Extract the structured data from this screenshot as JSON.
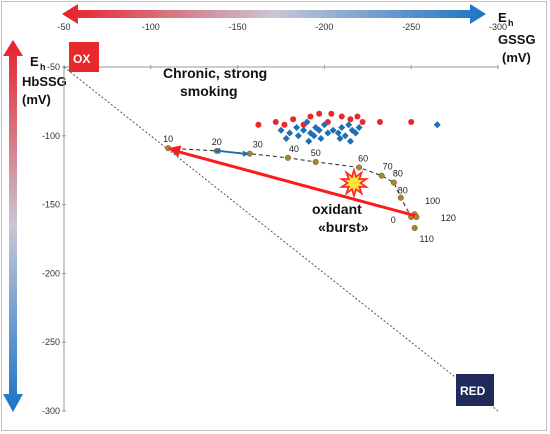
{
  "chart_data": {
    "type": "scatter",
    "x_axis": {
      "label_main": "E",
      "label_sub": "h",
      "label_line2": "GSSG",
      "label_line3": "(mV)",
      "range": [
        -50,
        -300
      ],
      "ticks": [
        -50,
        -100,
        -150,
        -200,
        -250,
        -300
      ]
    },
    "y_axis": {
      "label_main": "E",
      "label_sub": "h",
      "label_line2": "HbSSG",
      "label_line3": "(mV)",
      "range": [
        -50,
        -300
      ],
      "ticks": [
        -50,
        -100,
        -150,
        -200,
        -250,
        -300
      ]
    },
    "grid": false,
    "colors": {
      "ox_box": "#e8292b",
      "red_box": "#1f2a5a",
      "red_point": "#e8292b",
      "blue_point": "#1f6fb6",
      "path_point": "#a8842a",
      "diag": "#555555",
      "arrow_red": "#ff1a1a",
      "arrow_blue": "#1f6fb6",
      "burst": "#ff2a2a",
      "burst_core": "#ffe23a"
    },
    "labels": {
      "ox": "OX",
      "red": "RED",
      "smoking_line1": "Chronic, strong",
      "smoking_line2": "smoking",
      "burst_line1": "oxidant",
      "burst_line2": "«burst»"
    },
    "smoking_red": [
      [
        -172,
        -90
      ],
      [
        -182,
        -88
      ],
      [
        -192,
        -86
      ],
      [
        -197,
        -84
      ],
      [
        -204,
        -84
      ],
      [
        -210,
        -86
      ],
      [
        -215,
        -88
      ],
      [
        -219,
        -86
      ],
      [
        -232,
        -90
      ],
      [
        -250,
        -90
      ],
      [
        -177,
        -92
      ],
      [
        -188,
        -92
      ],
      [
        -202,
        -90
      ],
      [
        -222,
        -90
      ],
      [
        -162,
        -92
      ]
    ],
    "smoking_blue": [
      [
        -175,
        -96
      ],
      [
        -180,
        -98
      ],
      [
        -184,
        -94
      ],
      [
        -188,
        -96
      ],
      [
        -190,
        -90
      ],
      [
        -192,
        -98
      ],
      [
        -194,
        -100
      ],
      [
        -195,
        -94
      ],
      [
        -197,
        -96
      ],
      [
        -198,
        -102
      ],
      [
        -200,
        -92
      ],
      [
        -202,
        -98
      ],
      [
        -205,
        -96
      ],
      [
        -208,
        -98
      ],
      [
        -210,
        -94
      ],
      [
        -212,
        -100
      ],
      [
        -214,
        -92
      ],
      [
        -216,
        -96
      ],
      [
        -218,
        -98
      ],
      [
        -220,
        -94
      ],
      [
        -185,
        -100
      ],
      [
        -178,
        -102
      ],
      [
        -191,
        -104
      ],
      [
        -209,
        -102
      ],
      [
        -215,
        -104
      ],
      [
        -265,
        -92
      ]
    ],
    "path_points": [
      {
        "label": "10",
        "x": -110,
        "y": -109
      },
      {
        "label": "20",
        "x": -138,
        "y": -111
      },
      {
        "label": "30",
        "x": -157,
        "y": -113
      },
      {
        "label": "40",
        "x": -179,
        "y": -116
      },
      {
        "label": "50",
        "x": -195,
        "y": -119
      },
      {
        "label": "60",
        "x": -220,
        "y": -123
      },
      {
        "label": "70",
        "x": -233,
        "y": -129
      },
      {
        "label": "80",
        "x": -240,
        "y": -134
      },
      {
        "label": "80",
        "x": -244,
        "y": -145
      },
      {
        "label": "0",
        "x": -250,
        "y": -159
      },
      {
        "label": "100",
        "x": -252,
        "y": -157
      },
      {
        "label": "120",
        "x": -253,
        "y": -159
      },
      {
        "label": "110",
        "x": -252,
        "y": -167
      }
    ]
  }
}
